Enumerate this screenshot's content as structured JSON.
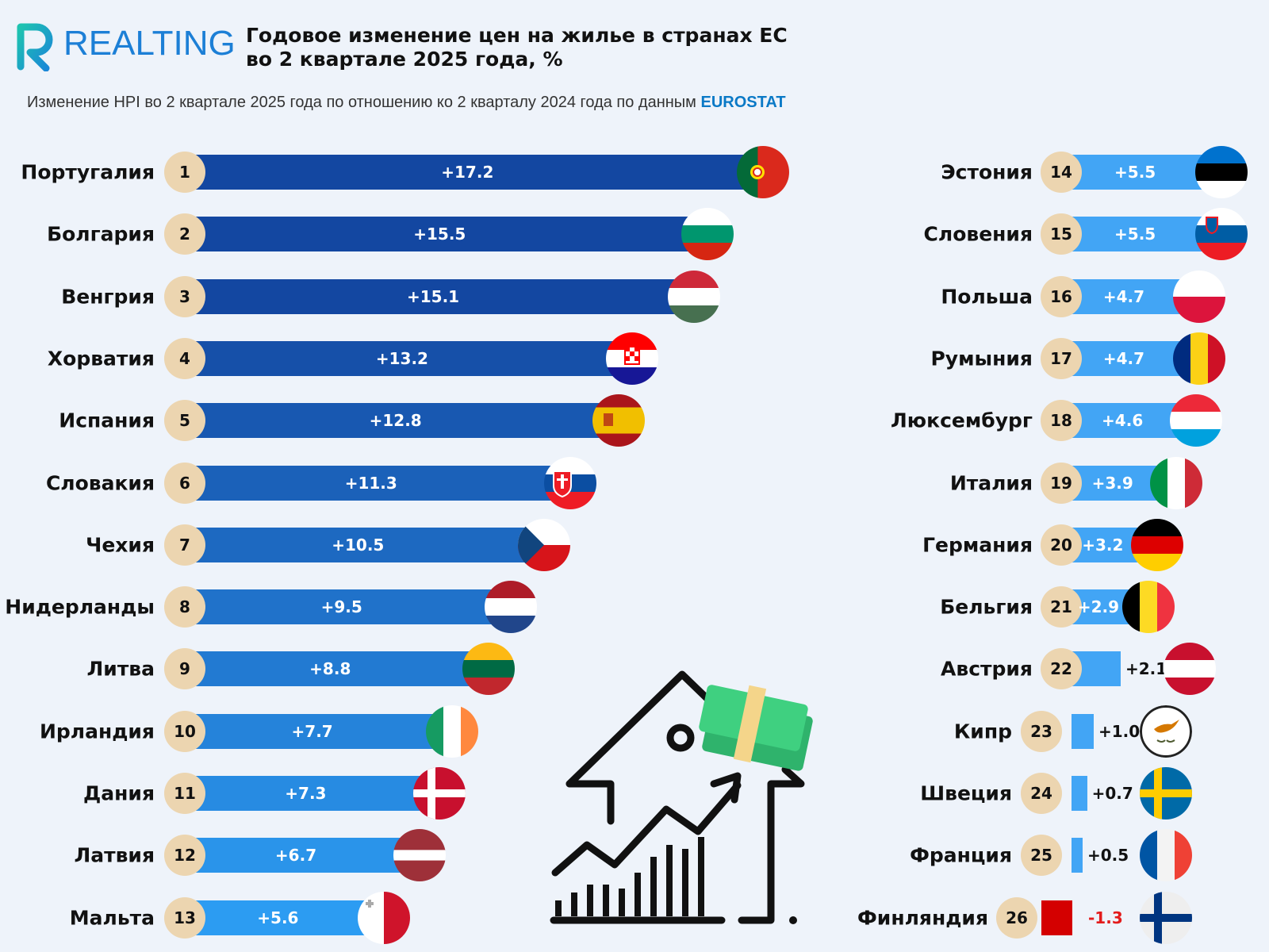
{
  "header": {
    "logo": "REALTING",
    "title_line1": "Годовое изменение цен на жилье в странах ЕС",
    "title_line2": "во 2 квартале 2025 года, %",
    "subtitle": "Изменение HPI во 2 квартале 2025 года по отношению ко 2 кварталу 2024 года по данным ",
    "source": "EUROSTAT"
  },
  "colors": {
    "bar_dark": "#1347a1",
    "bar_light": "#2c9cf2",
    "bar_right": "#42a5f5",
    "negative": "#d40000",
    "badge": "#ecd5b0",
    "accent": "#0a79c6"
  },
  "chart_data": {
    "type": "bar",
    "orientation": "horizontal",
    "title": "Годовое изменение цен на жилье в странах ЕС во 2 квартале 2025 года, %",
    "unit": "%",
    "rows": [
      {
        "rank": "1",
        "country": "Португалия",
        "value": 17.2,
        "label": "+17.2",
        "flag": "pt"
      },
      {
        "rank": "2",
        "country": "Болгария",
        "value": 15.5,
        "label": "+15.5",
        "flag": "bg"
      },
      {
        "rank": "3",
        "country": "Венгрия",
        "value": 15.1,
        "label": "+15.1",
        "flag": "hu"
      },
      {
        "rank": "4",
        "country": "Хорватия",
        "value": 13.2,
        "label": "+13.2",
        "flag": "hr"
      },
      {
        "rank": "5",
        "country": "Испания",
        "value": 12.8,
        "label": "+12.8",
        "flag": "es"
      },
      {
        "rank": "6",
        "country": "Словакия",
        "value": 11.3,
        "label": "+11.3",
        "flag": "sk"
      },
      {
        "rank": "7",
        "country": "Чехия",
        "value": 10.5,
        "label": "+10.5",
        "flag": "cz"
      },
      {
        "rank": "8",
        "country": "Нидерланды",
        "value": 9.5,
        "label": "+9.5",
        "flag": "nl"
      },
      {
        "rank": "9",
        "country": "Литва",
        "value": 8.8,
        "label": "+8.8",
        "flag": "lt"
      },
      {
        "rank": "10",
        "country": "Ирландия",
        "value": 7.7,
        "label": "+7.7",
        "flag": "ie"
      },
      {
        "rank": "11",
        "country": "Дания",
        "value": 7.3,
        "label": "+7.3",
        "flag": "dk"
      },
      {
        "rank": "12",
        "country": "Латвия",
        "value": 6.7,
        "label": "+6.7",
        "flag": "lv"
      },
      {
        "rank": "13",
        "country": "Мальта",
        "value": 5.6,
        "label": "+5.6",
        "flag": "mt"
      },
      {
        "rank": "14",
        "country": "Эстония",
        "value": 5.5,
        "label": "+5.5",
        "flag": "ee"
      },
      {
        "rank": "15",
        "country": "Словения",
        "value": 5.5,
        "label": "+5.5",
        "flag": "si"
      },
      {
        "rank": "16",
        "country": "Польша",
        "value": 4.7,
        "label": "+4.7",
        "flag": "pl"
      },
      {
        "rank": "17",
        "country": "Румыния",
        "value": 4.7,
        "label": "+4.7",
        "flag": "ro"
      },
      {
        "rank": "18",
        "country": "Люксембург",
        "value": 4.6,
        "label": "+4.6",
        "flag": "lu"
      },
      {
        "rank": "19",
        "country": "Италия",
        "value": 3.9,
        "label": "+3.9",
        "flag": "it"
      },
      {
        "rank": "20",
        "country": "Германия",
        "value": 3.2,
        "label": "+3.2",
        "flag": "de"
      },
      {
        "rank": "21",
        "country": "Бельгия",
        "value": 2.9,
        "label": "+2.9",
        "flag": "be"
      },
      {
        "rank": "22",
        "country": "Австрия",
        "value": 2.1,
        "label": "+2.1",
        "flag": "at"
      },
      {
        "rank": "23",
        "country": "Кипр",
        "value": 1.0,
        "label": "+1.0",
        "flag": "cy"
      },
      {
        "rank": "24",
        "country": "Швеция",
        "value": 0.7,
        "label": "+0.7",
        "flag": "se"
      },
      {
        "rank": "25",
        "country": "Франция",
        "value": 0.5,
        "label": "+0.5",
        "flag": "fr"
      },
      {
        "rank": "26",
        "country": "Финляндия",
        "value": -1.3,
        "label": "-1.3",
        "flag": "fi"
      }
    ]
  }
}
